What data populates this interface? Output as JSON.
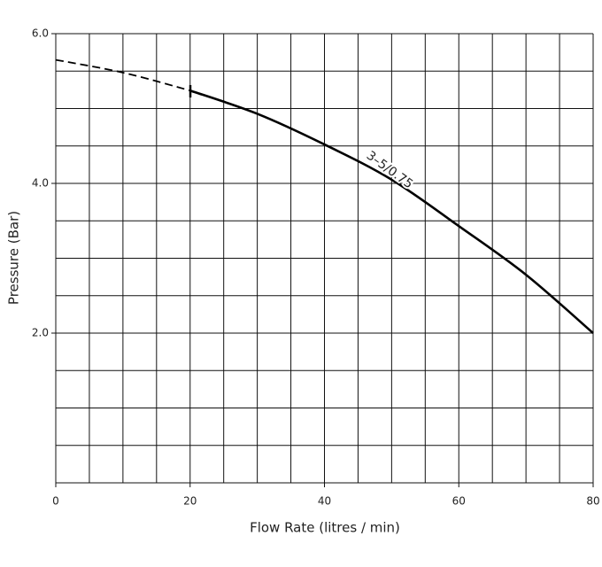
{
  "chart_data": {
    "type": "line",
    "x_label": "Flow Rate (litres / min)",
    "y_label": "Pressure (Bar)",
    "annotation": "3–5/0.75",
    "x": [
      0,
      10,
      20,
      30,
      40,
      50,
      60,
      70,
      80
    ],
    "series": [
      {
        "values": [
          5.65,
          5.48,
          5.24,
          null,
          null,
          null,
          null,
          null,
          null
        ],
        "color": "#000000",
        "dashed": true
      },
      {
        "values": [
          null,
          null,
          5.24,
          4.93,
          4.52,
          4.05,
          3.43,
          2.78,
          2.0
        ],
        "color": "#000000",
        "dashed": false
      }
    ],
    "xlim": [
      0,
      80
    ],
    "ylim": [
      0,
      6
    ],
    "xticks": [
      0,
      20,
      40,
      60,
      80
    ],
    "yticks": [
      {
        "value": 2,
        "label": "2.0"
      },
      {
        "value": 4,
        "label": "4.0"
      },
      {
        "value": 6,
        "label": "6.0"
      }
    ],
    "xgrid": [
      0,
      5,
      10,
      15,
      20,
      25,
      30,
      35,
      40,
      45,
      50,
      55,
      60,
      65,
      70,
      75,
      80
    ],
    "ygrid": [
      0,
      0.5,
      1,
      1.5,
      2,
      2.5,
      3,
      3.5,
      4,
      4.5,
      5,
      5.5,
      6
    ],
    "grid": true
  }
}
